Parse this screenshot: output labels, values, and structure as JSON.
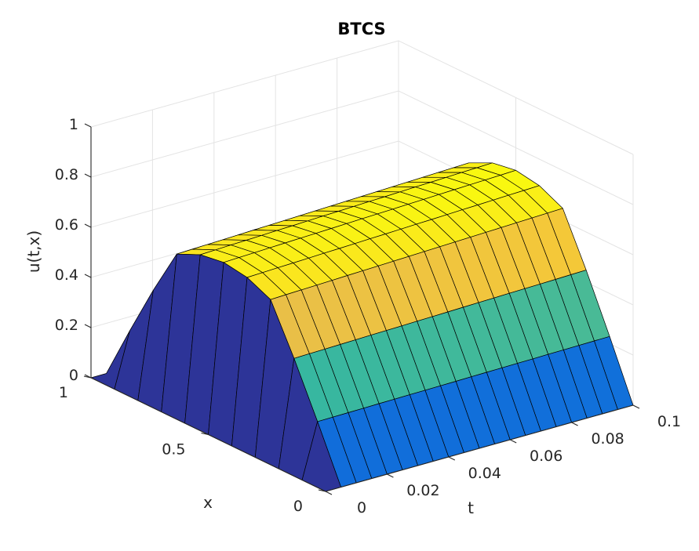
{
  "chart_data": {
    "type": "surface",
    "title": "BTCS",
    "xlabel": "t",
    "ylabel": "x",
    "zlabel": "u(t,x)",
    "t_ticks": [
      "0",
      "0.02",
      "0.04",
      "0.06",
      "0.08",
      "0.1"
    ],
    "x_ticks": [
      "0",
      "0.5",
      "1"
    ],
    "z_ticks": [
      "0",
      "0.2",
      "0.4",
      "0.6",
      "0.8",
      "1"
    ],
    "t_range": [
      0,
      0.1
    ],
    "x_range": [
      0,
      1
    ],
    "z_range": [
      0,
      1
    ],
    "grid": true,
    "colormap": "parula",
    "edge_color": "#000000",
    "t_values": [
      0,
      0.005,
      0.01,
      0.015,
      0.02,
      0.025,
      0.03,
      0.035,
      0.04,
      0.045,
      0.05,
      0.055,
      0.06,
      0.065,
      0.07,
      0.075,
      0.08,
      0.085,
      0.09,
      0.095,
      0.1
    ],
    "x_values": [
      0,
      0.1,
      0.2,
      0.3,
      0.4,
      0.5,
      0.6,
      0.7,
      0.8,
      0.9,
      1
    ],
    "surface": {
      "boundary_values": {
        "x=0": 0,
        "x=1": 0
      },
      "initial_condition_at_t0": 0,
      "ridge_value": 0.71,
      "steady_value_near_x=0.5": 0.7
    }
  }
}
